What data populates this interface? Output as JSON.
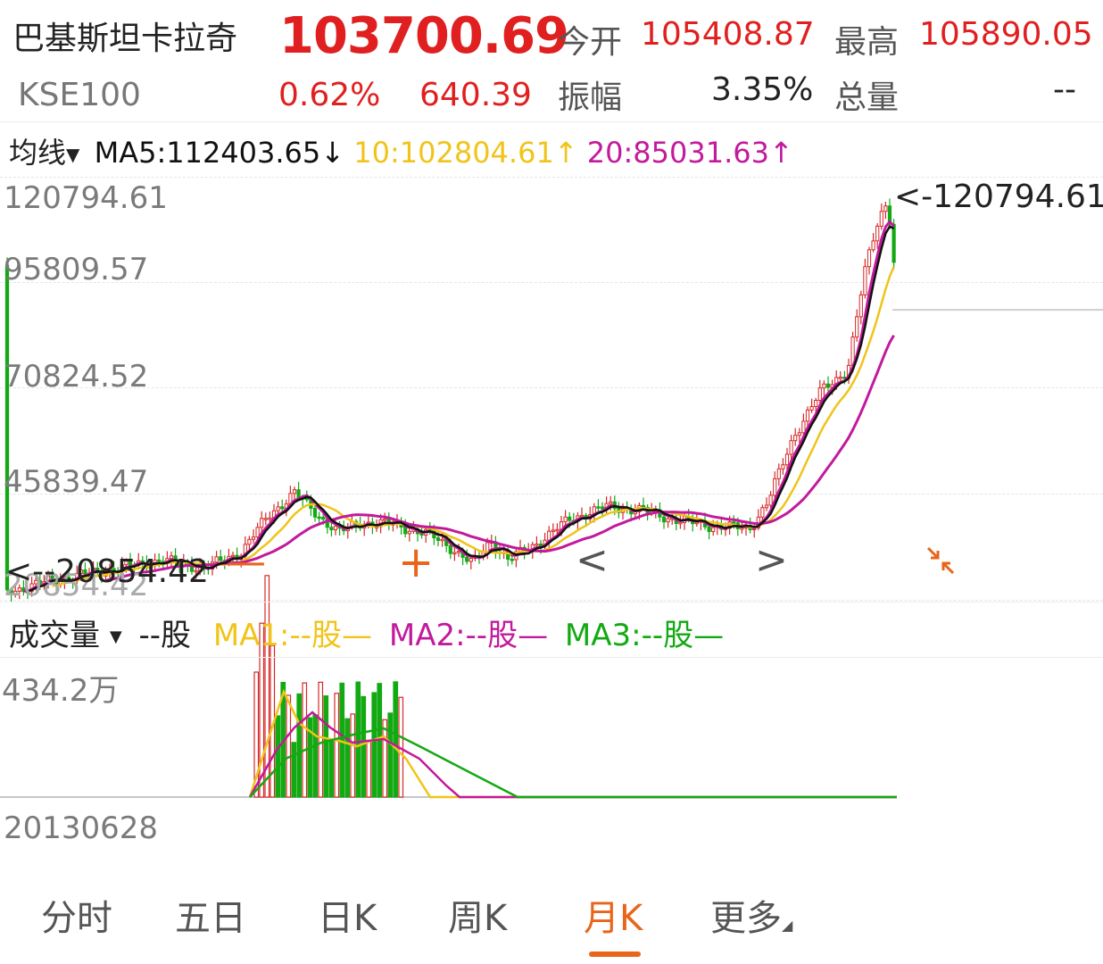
{
  "header": {
    "name": "巴基斯坦卡拉奇",
    "code": "KSE100",
    "price": "103700.69",
    "change_pct": "0.62%",
    "change": "640.39",
    "open_label": "今开",
    "open_value": "105408.87",
    "high_label": "最高",
    "high_value": "105890.05",
    "amp_label": "振幅",
    "amp_value": "3.35%",
    "vol_label": "总量",
    "vol_value": "--"
  },
  "ma_bar": {
    "label": "均线",
    "ma5": "MA5:112403.65↓",
    "ma10": "10:102804.61↑",
    "ma20": "20:85031.63↑"
  },
  "price_axis": [
    "120794.61",
    "95809.57",
    "70824.52",
    "45839.47",
    "20854.42"
  ],
  "high_marker": "<-120794.61",
  "low_marker": "<--20854.42",
  "volume_bar": {
    "label": "成交量",
    "unit": "--股",
    "ma1": "MA1:--股—",
    "ma2": "MA2:--股—",
    "ma3": "MA3:--股—",
    "max": "434.2万",
    "start_date": "20130628"
  },
  "controls": {
    "zoom_out": "—",
    "zoom_in": "+",
    "prev": "<",
    "next": ">",
    "shrink": "shrink-arrows-icon"
  },
  "tabs": [
    "分时",
    "五日",
    "日K",
    "周K",
    "月K",
    "更多"
  ],
  "active_tab": "月K",
  "colors": {
    "up": "#d62828",
    "down": "#13a913",
    "ma5": "#111111",
    "ma10": "#f0c419",
    "ma20": "#c21a9c",
    "accent": "#e8651a"
  },
  "chart_data": {
    "type": "candlestick",
    "y_range": [
      20854.42,
      120794.61
    ],
    "ma20_end": 85031.63,
    "ma10_end": 102804.61,
    "last_close": 103700.69
  }
}
